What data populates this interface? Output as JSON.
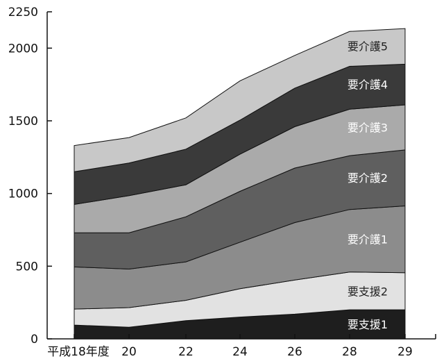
{
  "chart_data": {
    "type": "area",
    "stacked": true,
    "title": "",
    "xlabel": "",
    "ylabel": "",
    "x": [
      "平成18年度",
      "20",
      "22",
      "24",
      "26",
      "28",
      "29"
    ],
    "ylim": [
      0,
      2250
    ],
    "yticks": [
      "0",
      "500",
      "1000",
      "1500",
      "2000",
      "2250"
    ],
    "grid": false,
    "legend": "inline labels on right side of areas",
    "series": [
      {
        "name": "要支援1",
        "values": [
          95,
          80,
          125,
          150,
          170,
          200,
          200
        ],
        "color": "#1e1e1e",
        "label_color": "#ffffff"
      },
      {
        "name": "要支援2",
        "values": [
          110,
          135,
          140,
          195,
          235,
          260,
          255
        ],
        "color": "#e2e2e2",
        "label_color": "#222222"
      },
      {
        "name": "要介護1",
        "values": [
          290,
          265,
          265,
          320,
          395,
          430,
          460
        ],
        "color": "#8c8c8c",
        "label_color": "#ffffff"
      },
      {
        "name": "要介護2",
        "values": [
          235,
          250,
          310,
          350,
          375,
          370,
          385
        ],
        "color": "#5f5f5f",
        "label_color": "#ffffff"
      },
      {
        "name": "要介護3",
        "values": [
          195,
          255,
          220,
          255,
          285,
          320,
          310
        ],
        "color": "#aaaaaa",
        "label_color": "#ffffff"
      },
      {
        "name": "要介護4",
        "values": [
          225,
          225,
          245,
          235,
          265,
          295,
          280
        ],
        "color": "#3a3a3a",
        "label_color": "#ffffff"
      },
      {
        "name": "要介護5",
        "values": [
          180,
          175,
          215,
          270,
          225,
          240,
          245
        ],
        "color": "#c8c8c8",
        "label_color": "#222222"
      }
    ]
  }
}
